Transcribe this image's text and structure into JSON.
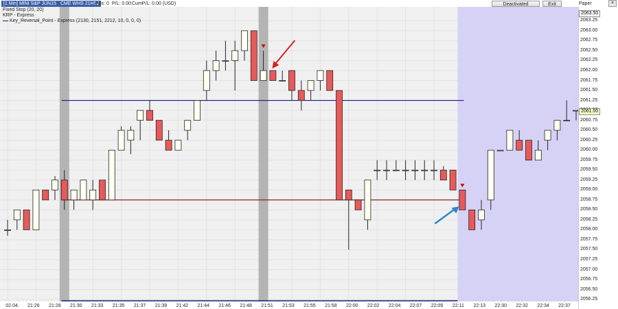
{
  "header": {
    "instrument_tag": "[1 Min] MINI S&P JUN15",
    "session_tag": "CME WHS 21H52",
    "pos_text": "Pos: 0",
    "pl_text": "P/L: 0.00",
    "cum_pl_text": "CumP/L: 0.00 (USD)",
    "deactivated_label": "Deactivated",
    "exit_label": "Exit",
    "paper_label": "Paper"
  },
  "legend": [
    "Fixed Stop  (20, 20)",
    "KRP - Express",
    "Key_Reversal_Point - Express  (2130, 2151, 2212, 10, 0, 0, 0)"
  ],
  "price_boxes": {
    "top": "2063.50",
    "current": "2061.00"
  },
  "colors": {
    "bull_fill": "#fffff0",
    "bear_fill": "#e85a5a",
    "candle_outline": "#222222",
    "chart_background": "#f0f0f0",
    "shaded_zone": "#d6d2f5",
    "gray_band": "#b4b4b4",
    "upper_level_line": "#1a1a80",
    "lower_level_line": "#7a1010",
    "signal_marker": "#cc0000",
    "red_arrow": "#d42020",
    "blue_arrow": "#2a88c8"
  },
  "chart_data": {
    "type": "candlestick",
    "x_tick_labels": [
      "02.04.",
      "21:26",
      "21:28",
      "21:30",
      "21:33",
      "21:35",
      "21:37",
      "21:39",
      "21:42",
      "21:44",
      "21:46",
      "21:48",
      "21:51",
      "21:53",
      "21:55",
      "21:58",
      "22:00",
      "22:02",
      "22:04",
      "22:07",
      "22:09",
      "22:11",
      "22:13",
      "22:30",
      "22:32",
      "22:34",
      "22:37"
    ],
    "y_tick_labels": [
      "2063.25",
      "2063.00",
      "2062.75",
      "2062.50",
      "2062.25",
      "2062.00",
      "2061.75",
      "2061.50",
      "2061.25",
      "2061.00",
      "2060.75",
      "2060.50",
      "2060.25",
      "2060.00",
      "2059.75",
      "2059.50",
      "2059.25",
      "2059.00",
      "2058.75",
      "2058.50",
      "2058.25",
      "2058.00",
      "2057.75",
      "2057.50",
      "2057.25",
      "2057.00",
      "2056.75",
      "2056.50",
      "2056.25"
    ],
    "ylim": [
      2056.2,
      2063.6
    ],
    "candles": [
      {
        "o": 2058.0,
        "h": 2058.25,
        "l": 2057.85,
        "c": 2058.0
      },
      {
        "o": 2058.25,
        "h": 2058.5,
        "l": 2058.0,
        "c": 2058.5
      },
      {
        "o": 2058.5,
        "h": 2058.5,
        "l": 2058.0,
        "c": 2058.0
      },
      {
        "o": 2058.0,
        "h": 2059.0,
        "l": 2058.0,
        "c": 2059.0
      },
      {
        "o": 2059.0,
        "h": 2059.0,
        "l": 2058.75,
        "c": 2058.75
      },
      {
        "o": 2059.0,
        "h": 2059.35,
        "l": 2058.75,
        "c": 2059.25
      },
      {
        "o": 2059.25,
        "h": 2059.5,
        "l": 2058.5,
        "c": 2058.75
      },
      {
        "o": 2058.75,
        "h": 2059.0,
        "l": 2058.5,
        "c": 2059.0
      },
      {
        "o": 2058.75,
        "h": 2059.25,
        "l": 2058.75,
        "c": 2059.25
      },
      {
        "o": 2058.75,
        "h": 2059.25,
        "l": 2058.5,
        "c": 2059.0
      },
      {
        "o": 2059.25,
        "h": 2059.25,
        "l": 2058.75,
        "c": 2058.75
      },
      {
        "o": 2058.75,
        "h": 2060.0,
        "l": 2058.75,
        "c": 2060.0
      },
      {
        "o": 2060.0,
        "h": 2060.6,
        "l": 2060.0,
        "c": 2060.5
      },
      {
        "o": 2060.25,
        "h": 2060.6,
        "l": 2059.9,
        "c": 2060.5
      },
      {
        "o": 2060.75,
        "h": 2061.0,
        "l": 2060.25,
        "c": 2061.0
      },
      {
        "o": 2061.0,
        "h": 2061.25,
        "l": 2060.75,
        "c": 2060.75
      },
      {
        "o": 2060.75,
        "h": 2060.75,
        "l": 2060.25,
        "c": 2060.25
      },
      {
        "o": 2060.25,
        "h": 2060.5,
        "l": 2060.0,
        "c": 2060.0
      },
      {
        "o": 2060.0,
        "h": 2060.25,
        "l": 2060.0,
        "c": 2060.25
      },
      {
        "o": 2060.5,
        "h": 2060.75,
        "l": 2060.25,
        "c": 2060.75
      },
      {
        "o": 2060.75,
        "h": 2061.25,
        "l": 2060.75,
        "c": 2061.25
      },
      {
        "o": 2061.5,
        "h": 2062.25,
        "l": 2061.25,
        "c": 2062.0
      },
      {
        "o": 2062.0,
        "h": 2062.5,
        "l": 2061.75,
        "c": 2062.25
      },
      {
        "o": 2062.25,
        "h": 2062.75,
        "l": 2062.0,
        "c": 2062.25
      },
      {
        "o": 2062.25,
        "h": 2062.75,
        "l": 2061.5,
        "c": 2062.5
      },
      {
        "o": 2062.5,
        "h": 2063.0,
        "l": 2062.25,
        "c": 2063.0
      },
      {
        "o": 2063.0,
        "h": 2063.0,
        "l": 2061.75,
        "c": 2061.75
      },
      {
        "o": 2061.75,
        "h": 2062.5,
        "l": 2061.75,
        "c": 2062.0
      },
      {
        "o": 2062.0,
        "h": 2062.0,
        "l": 2061.75,
        "c": 2061.75
      },
      {
        "o": 2061.75,
        "h": 2062.0,
        "l": 2061.75,
        "c": 2061.75
      },
      {
        "o": 2062.0,
        "h": 2062.0,
        "l": 2061.25,
        "c": 2061.5
      },
      {
        "o": 2061.5,
        "h": 2061.75,
        "l": 2061.0,
        "c": 2061.25
      },
      {
        "o": 2061.5,
        "h": 2061.75,
        "l": 2061.25,
        "c": 2061.75
      },
      {
        "o": 2061.75,
        "h": 2062.0,
        "l": 2061.5,
        "c": 2062.0
      },
      {
        "o": 2062.0,
        "h": 2062.0,
        "l": 2061.5,
        "c": 2061.5
      },
      {
        "o": 2061.5,
        "h": 2061.5,
        "l": 2058.75,
        "c": 2058.75
      },
      {
        "o": 2059.0,
        "h": 2059.0,
        "l": 2057.5,
        "c": 2058.75
      },
      {
        "o": 2058.75,
        "h": 2058.75,
        "l": 2058.5,
        "c": 2058.5
      },
      {
        "o": 2058.25,
        "h": 2059.25,
        "l": 2058.0,
        "c": 2059.25
      },
      {
        "o": 2059.5,
        "h": 2059.75,
        "l": 2059.25,
        "c": 2059.5
      },
      {
        "o": 2059.5,
        "h": 2059.75,
        "l": 2059.25,
        "c": 2059.5
      },
      {
        "o": 2059.5,
        "h": 2059.75,
        "l": 2059.5,
        "c": 2059.5
      },
      {
        "o": 2059.5,
        "h": 2059.75,
        "l": 2059.25,
        "c": 2059.5
      },
      {
        "o": 2059.5,
        "h": 2059.75,
        "l": 2059.25,
        "c": 2059.5
      },
      {
        "o": 2059.5,
        "h": 2059.75,
        "l": 2059.25,
        "c": 2059.5
      },
      {
        "o": 2059.5,
        "h": 2059.75,
        "l": 2059.25,
        "c": 2059.5
      },
      {
        "o": 2059.5,
        "h": 2059.6,
        "l": 2059.25,
        "c": 2059.25
      },
      {
        "o": 2059.5,
        "h": 2059.5,
        "l": 2059.0,
        "c": 2059.0
      },
      {
        "o": 2059.0,
        "h": 2059.0,
        "l": 2058.5,
        "c": 2058.5
      },
      {
        "o": 2058.5,
        "h": 2058.5,
        "l": 2058.0,
        "c": 2058.0
      },
      {
        "o": 2058.25,
        "h": 2058.75,
        "l": 2058.0,
        "c": 2058.5
      },
      {
        "o": 2058.75,
        "h": 2060.0,
        "l": 2058.5,
        "c": 2060.0
      },
      {
        "o": 2060.0,
        "h": 2060.0,
        "l": 2060.0,
        "c": 2060.0
      },
      {
        "o": 2060.0,
        "h": 2060.5,
        "l": 2060.0,
        "c": 2060.5
      },
      {
        "o": 2060.25,
        "h": 2060.5,
        "l": 2060.0,
        "c": 2060.0
      },
      {
        "o": 2060.25,
        "h": 2060.25,
        "l": 2059.75,
        "c": 2059.75
      },
      {
        "o": 2059.75,
        "h": 2060.25,
        "l": 2059.75,
        "c": 2060.0
      },
      {
        "o": 2060.25,
        "h": 2060.5,
        "l": 2060.0,
        "c": 2060.5
      },
      {
        "o": 2060.5,
        "h": 2060.75,
        "l": 2060.25,
        "c": 2060.75
      },
      {
        "o": 2060.75,
        "h": 2061.25,
        "l": 2060.75,
        "c": 2060.75
      },
      {
        "o": 2061.0,
        "h": 2061.0,
        "l": 2060.75,
        "c": 2061.0
      }
    ],
    "upper_level": 2061.25,
    "lower_level": 2058.75,
    "gray_band_bars": [
      6,
      27
    ],
    "shaded_zone_from_bar": 48,
    "signal_marker_bars": [
      27,
      48
    ]
  }
}
